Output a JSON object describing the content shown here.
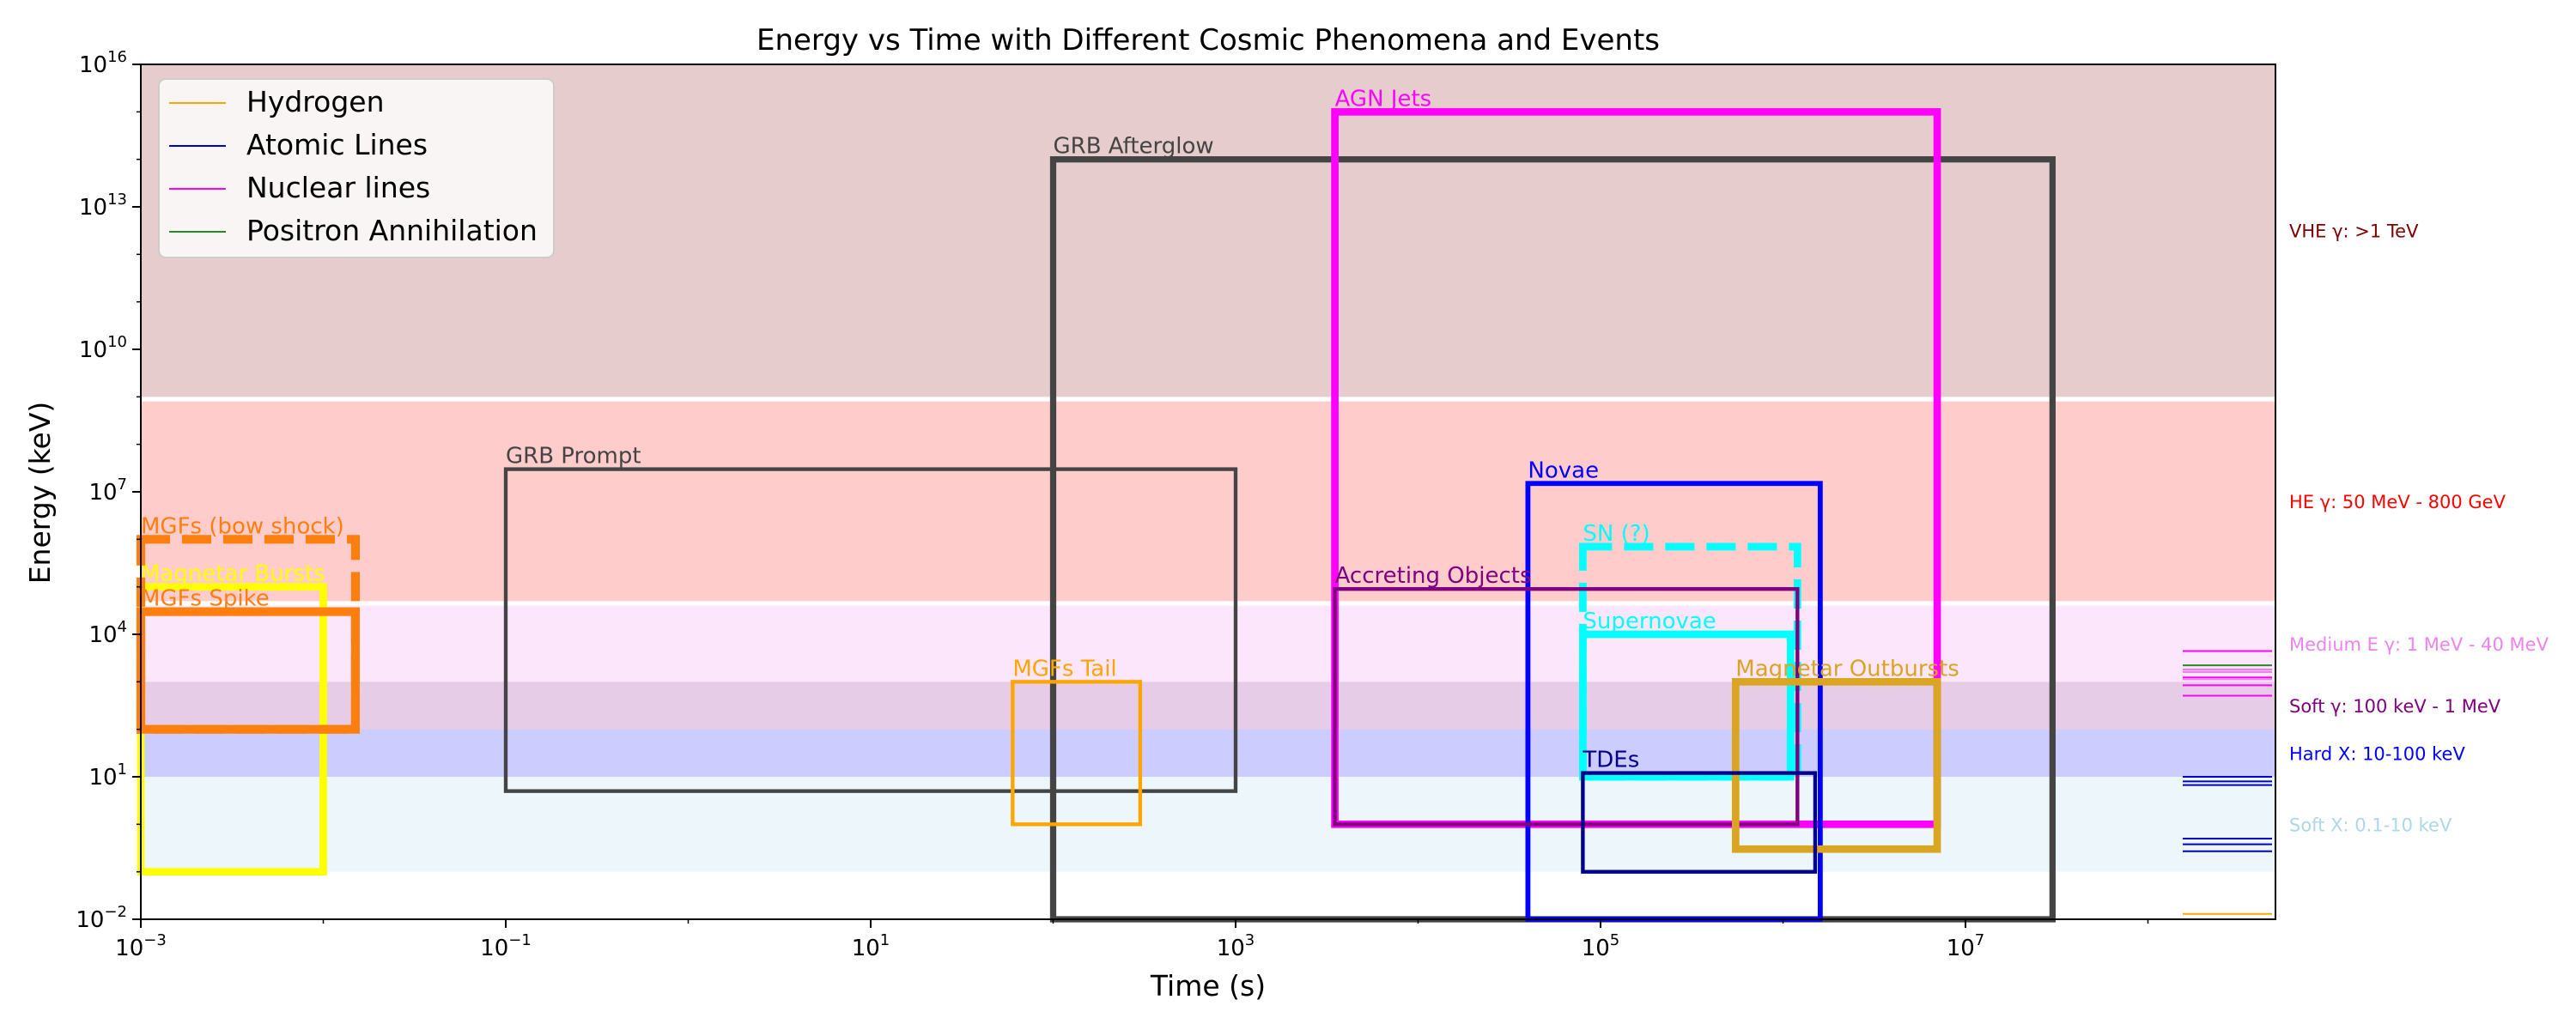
{
  "chart_data": {
    "type": "area",
    "title": "Energy vs Time with Different Cosmic Phenomena and Events",
    "xlabel": "Time (s)",
    "ylabel": "Energy (keV)",
    "x_scale": "log",
    "y_scale": "log",
    "xlim": [
      0.001,
      500000000
    ],
    "ylim": [
      0.01,
      1e+16
    ],
    "x_ticks": [
      {
        "value": 0.001,
        "base": "10",
        "exp": "−3"
      },
      {
        "value": 0.1,
        "base": "10",
        "exp": "−1"
      },
      {
        "value": 10,
        "base": "10",
        "exp": "1"
      },
      {
        "value": 1000,
        "base": "10",
        "exp": "3"
      },
      {
        "value": 100000,
        "base": "10",
        "exp": "5"
      },
      {
        "value": 10000000,
        "base": "10",
        "exp": "7"
      }
    ],
    "y_ticks": [
      {
        "value": 0.01,
        "base": "10",
        "exp": "−2"
      },
      {
        "value": 10,
        "base": "10",
        "exp": "1"
      },
      {
        "value": 10000,
        "base": "10",
        "exp": "4"
      },
      {
        "value": 10000000,
        "base": "10",
        "exp": "7"
      },
      {
        "value": 10000000000.0,
        "base": "10",
        "exp": "10"
      },
      {
        "value": 10000000000000.0,
        "base": "10",
        "exp": "13"
      },
      {
        "value": 1e+16,
        "base": "10",
        "exp": "16"
      }
    ],
    "bands": [
      {
        "label": "Soft X: 0.1-10 keV",
        "ymin": 0.1,
        "ymax": 10,
        "fill": "#add8e6",
        "opacity": 0.22,
        "label_color": "#add8e6"
      },
      {
        "label": "Hard X: 10-100 keV",
        "ymin": 10,
        "ymax": 100,
        "fill": "#0000ff",
        "opacity": 0.2,
        "label_color": "#0000ff"
      },
      {
        "label": "Soft γ: 100 keV - 1 MeV",
        "ymin": 100,
        "ymax": 1000,
        "fill": "#800080",
        "opacity": 0.2,
        "label_color": "#800080"
      },
      {
        "label": "Medium E γ: 1 MeV - 40 MeV",
        "ymin": 1000,
        "ymax": 40000,
        "fill": "#ee82ee",
        "opacity": 0.2,
        "label_color": "#ee82ee"
      },
      {
        "label": "HE γ: 50 MeV - 800 GeV",
        "ymin": 50000,
        "ymax": 800000000,
        "fill": "#ff0000",
        "opacity": 0.2,
        "label_color": "#ff0000"
      },
      {
        "label": "VHE γ: >1 TeV",
        "ymin": 1000000000,
        "ymax": 1e+16,
        "fill": "#800000",
        "opacity": 0.2,
        "label_color": "#800000"
      }
    ],
    "boxes": [
      {
        "label": "GRB Afterglow",
        "xmin": 100,
        "xmax": 30000000,
        "ymin": 0.01,
        "ymax": 100000000000000.0,
        "color": "#444444",
        "lw": 5,
        "dashed": false
      },
      {
        "label": "AGN Jets",
        "xmin": 3500,
        "xmax": 7000000,
        "ymin": 1,
        "ymax": 1000000000000000.0,
        "color": "#ff00ff",
        "lw": 6,
        "dashed": false
      },
      {
        "label": "GRB Prompt",
        "xmin": 0.1,
        "xmax": 1000,
        "ymin": 5,
        "ymax": 30000000,
        "color": "#444444",
        "lw": 3,
        "dashed": false
      },
      {
        "label": "Novae",
        "xmin": 40000,
        "xmax": 1600000,
        "ymin": 0.01,
        "ymax": 15000000,
        "color": "#0000ff",
        "lw": 4,
        "dashed": false
      },
      {
        "label": "SN (?)",
        "xmin": 80000,
        "xmax": 1200000,
        "ymin": 10,
        "ymax": 700000,
        "color": "#00ffff",
        "lw": 6,
        "dashed": true
      },
      {
        "label": "Accreting Objects",
        "xmin": 3500,
        "xmax": 1200000,
        "ymin": 1,
        "ymax": 90000,
        "color": "#800080",
        "lw": 3,
        "dashed": false
      },
      {
        "label": "Supernovae",
        "xmin": 80000,
        "xmax": 1100000,
        "ymin": 10,
        "ymax": 10000,
        "color": "#00ffff",
        "lw": 6,
        "dashed": false
      },
      {
        "label": "Magnetar Outbursts",
        "xmin": 550000,
        "xmax": 7000000,
        "ymin": 0.3,
        "ymax": 1000,
        "color": "#daa520",
        "lw": 6,
        "dashed": false
      },
      {
        "label": "TDEs",
        "xmin": 80000,
        "xmax": 1500000,
        "ymin": 0.1,
        "ymax": 12,
        "color": "#00008b",
        "lw": 3,
        "dashed": false
      },
      {
        "label": "MGFs Tail",
        "xmin": 60,
        "xmax": 300,
        "ymin": 1,
        "ymax": 1000,
        "color": "#ffa500",
        "lw": 3,
        "dashed": false
      },
      {
        "label": "Magnetar Bursts",
        "xmin": 0.001,
        "xmax": 0.01,
        "ymin": 0.1,
        "ymax": 100000,
        "color": "#ffff00",
        "lw": 6,
        "dashed": false
      },
      {
        "label": "MGFs (bow shock)",
        "xmin": 0.001,
        "xmax": 0.015,
        "ymin": 100,
        "ymax": 1000000,
        "color": "#ff7f0e",
        "lw": 7,
        "dashed": true
      },
      {
        "label": "MGFs Spike",
        "xmin": 0.001,
        "xmax": 0.015,
        "ymin": 100,
        "ymax": 30000,
        "color": "#ff7f0e",
        "lw": 7,
        "dashed": false
      }
    ],
    "ticks_right": [
      {
        "series": "Hydrogen",
        "color": "#ffa500",
        "y": [
          0.013
        ]
      },
      {
        "series": "Atomic Lines",
        "color": "#0000cd",
        "y": [
          0.27,
          0.38,
          0.5,
          6.7,
          8,
          10
        ]
      },
      {
        "series": "Nuclear lines",
        "color": "#ff00ff",
        "y": [
          511,
          847,
          1238,
          1809,
          4438
        ]
      },
      {
        "series": "Nuclear lines",
        "color": "#ee82ee",
        "y": [
          1130,
          1600,
          1800
        ]
      },
      {
        "series": "Positron Annihilation",
        "color": "#228b22",
        "y": [
          2223
        ]
      }
    ],
    "legend": {
      "placement": "top-left",
      "items": [
        {
          "label": "Hydrogen",
          "color": "#ffa500"
        },
        {
          "label": "Atomic Lines",
          "color": "#0000cd"
        },
        {
          "label": "Nuclear lines",
          "color": "#ff00ff"
        },
        {
          "label": "Positron Annihilation",
          "color": "#228b22"
        }
      ]
    },
    "grid": false
  }
}
